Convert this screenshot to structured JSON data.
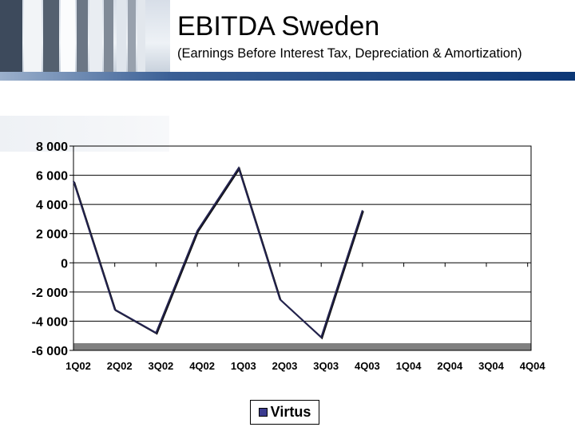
{
  "header": {
    "title": "EBITDA Sweden",
    "subtitle": "(Earnings Before Interest Tax, Depreciation & Amortization)"
  },
  "colors": {
    "series": "#23234f",
    "grid": "#000000",
    "floor": "#808080",
    "header_bar": "#0c3776"
  },
  "chart_data": {
    "type": "line",
    "title": "EBITDA Sweden",
    "subtitle": "(Earnings Before Interest Tax, Depreciation & Amortization)",
    "categories": [
      "1Q02",
      "2Q02",
      "3Q02",
      "4Q02",
      "1Q03",
      "2Q03",
      "3Q03",
      "4Q03",
      "1Q04",
      "2Q04",
      "3Q04",
      "4Q04"
    ],
    "series": [
      {
        "name": "Virtus",
        "values": [
          5600,
          -3200,
          -4800,
          2200,
          6500,
          -2500,
          -5100,
          3600,
          null,
          null,
          null,
          null
        ]
      }
    ],
    "ylim": [
      -6000,
      8000
    ],
    "yticks": [
      8000,
      6000,
      4000,
      2000,
      0,
      -2000,
      -4000,
      -6000
    ],
    "ytick_labels": [
      "8 000",
      "6 000",
      "4 000",
      "2 000",
      "0",
      "-2 000",
      "-4 000",
      "-6 000"
    ],
    "xlabel": "",
    "ylabel": "",
    "grid": true,
    "legend": "bottom-center"
  }
}
